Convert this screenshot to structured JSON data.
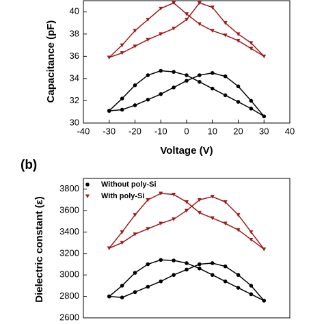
{
  "chart_data": [
    {
      "type": "scatter",
      "ylabel": "Capacitance (pF)",
      "xlabel": "Voltage (V)",
      "xlim": [
        -40,
        40
      ],
      "xticks": [
        -40,
        -30,
        -20,
        -10,
        0,
        10,
        20,
        30,
        40
      ],
      "ylim": [
        30,
        41
      ],
      "yticks": [
        30,
        32,
        34,
        36,
        38,
        40
      ],
      "x": [
        -30,
        -25,
        -20,
        -15,
        -10,
        -5,
        0,
        5,
        10,
        15,
        20,
        25,
        30,
        25,
        20,
        15,
        10,
        5,
        0,
        -5,
        -10,
        -15,
        -20,
        -25,
        -30
      ],
      "series": [
        {
          "name": "Without poly-Si",
          "color": "#000000",
          "marker": "circle",
          "values": [
            31.1,
            31.2,
            31.6,
            32.1,
            32.6,
            33.2,
            33.8,
            34.3,
            34.5,
            34.2,
            33.3,
            32.0,
            30.6,
            31.3,
            31.9,
            32.5,
            33.1,
            33.7,
            34.3,
            34.6,
            34.7,
            34.3,
            33.4,
            32.2,
            31.1
          ]
        },
        {
          "name": "With poly-Si",
          "color": "#a01818",
          "marker": "triangle",
          "values": [
            35.9,
            36.3,
            36.9,
            37.5,
            38.0,
            38.5,
            39.3,
            40.8,
            40.4,
            39.0,
            38.0,
            37.2,
            36.0,
            36.7,
            37.4,
            37.9,
            38.3,
            38.9,
            39.8,
            40.8,
            40.3,
            39.3,
            38.3,
            37.0,
            35.9
          ]
        }
      ]
    },
    {
      "type": "scatter",
      "panel_label": "(b)",
      "ylabel": "Dielectric constant (ε)",
      "xlim": [
        -40,
        40
      ],
      "ylim": [
        2600,
        3900
      ],
      "yticks": [
        2600,
        2800,
        3000,
        3200,
        3400,
        3600,
        3800
      ],
      "x": [
        -30,
        -25,
        -20,
        -15,
        -10,
        -5,
        0,
        5,
        10,
        15,
        20,
        25,
        30,
        25,
        20,
        15,
        10,
        5,
        0,
        -5,
        -10,
        -15,
        -20,
        -25,
        -30
      ],
      "series": [
        {
          "name": "Without poly-Si",
          "color": "#000000",
          "marker": "circle",
          "values": [
            2800,
            2790,
            2840,
            2890,
            2940,
            3000,
            3050,
            3100,
            3110,
            3080,
            3000,
            2900,
            2760,
            2820,
            2880,
            2940,
            3000,
            3060,
            3110,
            3135,
            3140,
            3100,
            3020,
            2900,
            2800
          ]
        },
        {
          "name": "With poly-Si",
          "color": "#a01818",
          "marker": "triangle",
          "values": [
            3250,
            3300,
            3380,
            3430,
            3480,
            3520,
            3600,
            3700,
            3730,
            3680,
            3560,
            3400,
            3240,
            3330,
            3420,
            3480,
            3530,
            3580,
            3680,
            3750,
            3760,
            3700,
            3560,
            3400,
            3250
          ]
        }
      ],
      "legend": "upper left"
    }
  ]
}
